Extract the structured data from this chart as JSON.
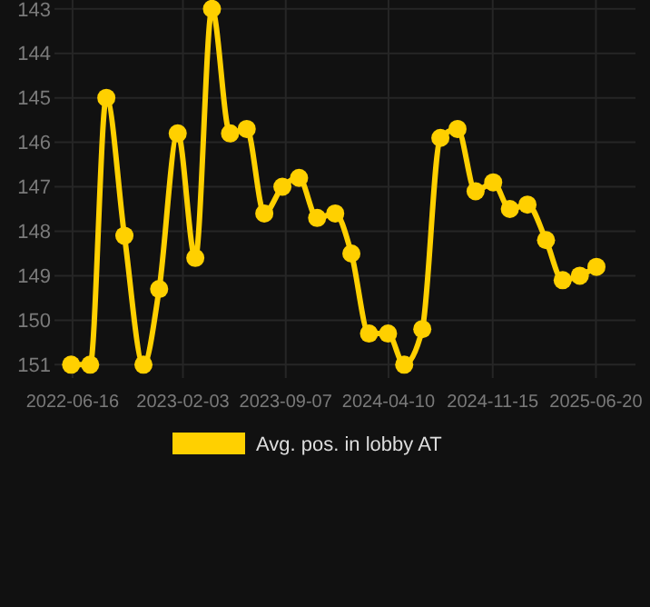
{
  "chart_data": {
    "type": "line",
    "x": [
      "2022-06-13",
      "2022-07-23",
      "2022-08-26",
      "2022-10-03",
      "2022-11-12",
      "2022-12-15",
      "2023-01-23",
      "2023-03-01",
      "2023-04-05",
      "2023-05-13",
      "2023-06-17",
      "2023-07-24",
      "2023-08-31",
      "2023-10-05",
      "2023-11-12",
      "2023-12-20",
      "2024-01-23",
      "2024-02-29",
      "2024-04-09",
      "2024-05-13",
      "2024-06-20",
      "2024-07-28",
      "2024-09-02",
      "2024-10-10",
      "2024-11-16",
      "2024-12-21",
      "2025-01-27",
      "2025-03-07",
      "2025-04-11",
      "2025-05-17",
      "2025-06-21"
    ],
    "series": [
      {
        "name": "Avg. pos. in lobby AT",
        "color": "#ffd000",
        "values": [
          151,
          151,
          145,
          148.1,
          151,
          149.3,
          145.8,
          148.6,
          143,
          145.8,
          145.7,
          147.6,
          147,
          146.8,
          147.7,
          147.6,
          148.5,
          150.3,
          150.3,
          151,
          150.2,
          145.9,
          145.7,
          147.1,
          146.9,
          147.5,
          147.4,
          148.2,
          149.1,
          149,
          148.8
        ]
      }
    ],
    "xlim": [
      "2022-05-09",
      "2025-09-11"
    ],
    "xticks": [
      "2022-06-16",
      "2023-02-03",
      "2023-09-07",
      "2024-04-10",
      "2024-11-15",
      "2025-06-20"
    ],
    "ylim": [
      151.3,
      142.8
    ],
    "yticks": [
      143,
      144,
      145,
      146,
      147,
      148,
      149,
      150,
      151
    ],
    "grid": true,
    "legend": "bottom",
    "marker": "circle",
    "line_style": "solid"
  }
}
